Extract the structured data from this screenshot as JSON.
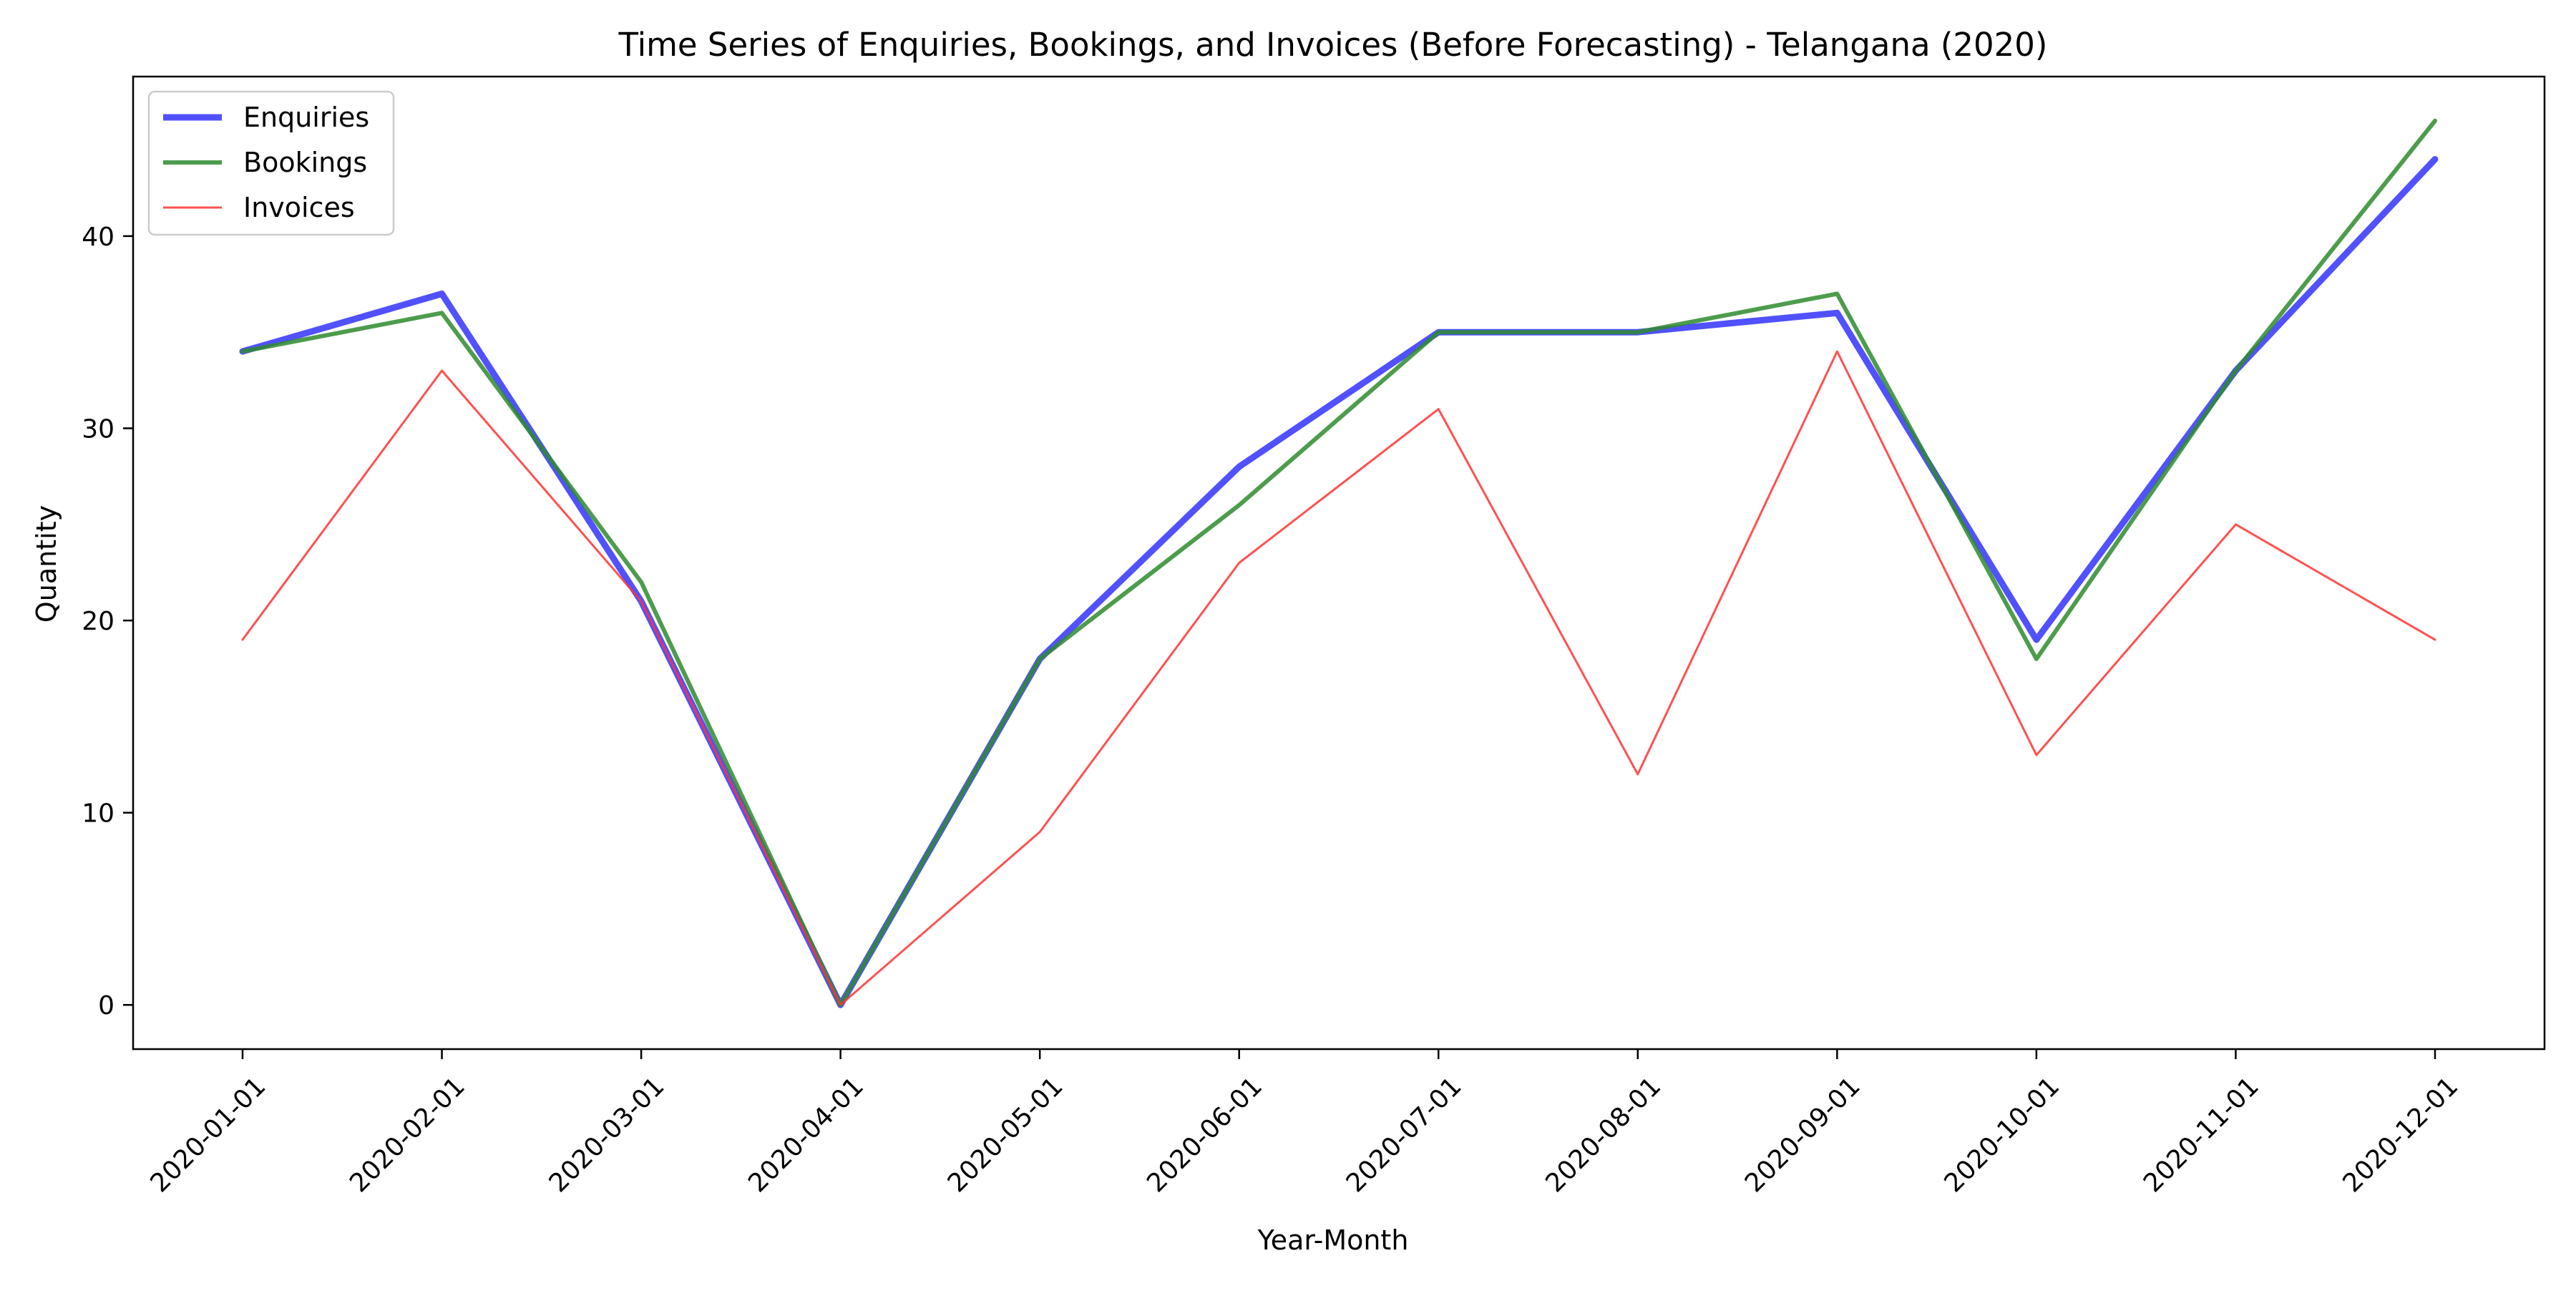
{
  "chart_data": {
    "type": "line",
    "title": "Time Series of Enquiries, Bookings, and Invoices (Before Forecasting) - Telangana (2020)",
    "xlabel": "Year-Month",
    "ylabel": "Quantity",
    "x": [
      "2020-01-01",
      "2020-02-01",
      "2020-03-01",
      "2020-04-01",
      "2020-05-01",
      "2020-06-01",
      "2020-07-01",
      "2020-08-01",
      "2020-09-01",
      "2020-10-01",
      "2020-11-01",
      "2020-12-01"
    ],
    "yticks": [
      0,
      10,
      20,
      30,
      40
    ],
    "ylim": [
      -2.3,
      48.3
    ],
    "grid": false,
    "legend_position": "top-left",
    "series": [
      {
        "name": "Enquiries",
        "color": "#3333ff",
        "values": [
          34,
          37,
          21,
          0,
          18,
          28,
          35,
          35,
          36,
          19,
          33,
          44
        ]
      },
      {
        "name": "Bookings",
        "color": "#2e8b2e",
        "values": [
          34,
          36,
          22,
          0,
          18,
          26,
          35,
          35,
          37,
          18,
          33,
          46
        ]
      },
      {
        "name": "Invoices",
        "color": "#ff3333",
        "values": [
          19,
          33,
          21,
          0,
          9,
          23,
          31,
          12,
          34,
          13,
          25,
          19
        ]
      }
    ]
  }
}
